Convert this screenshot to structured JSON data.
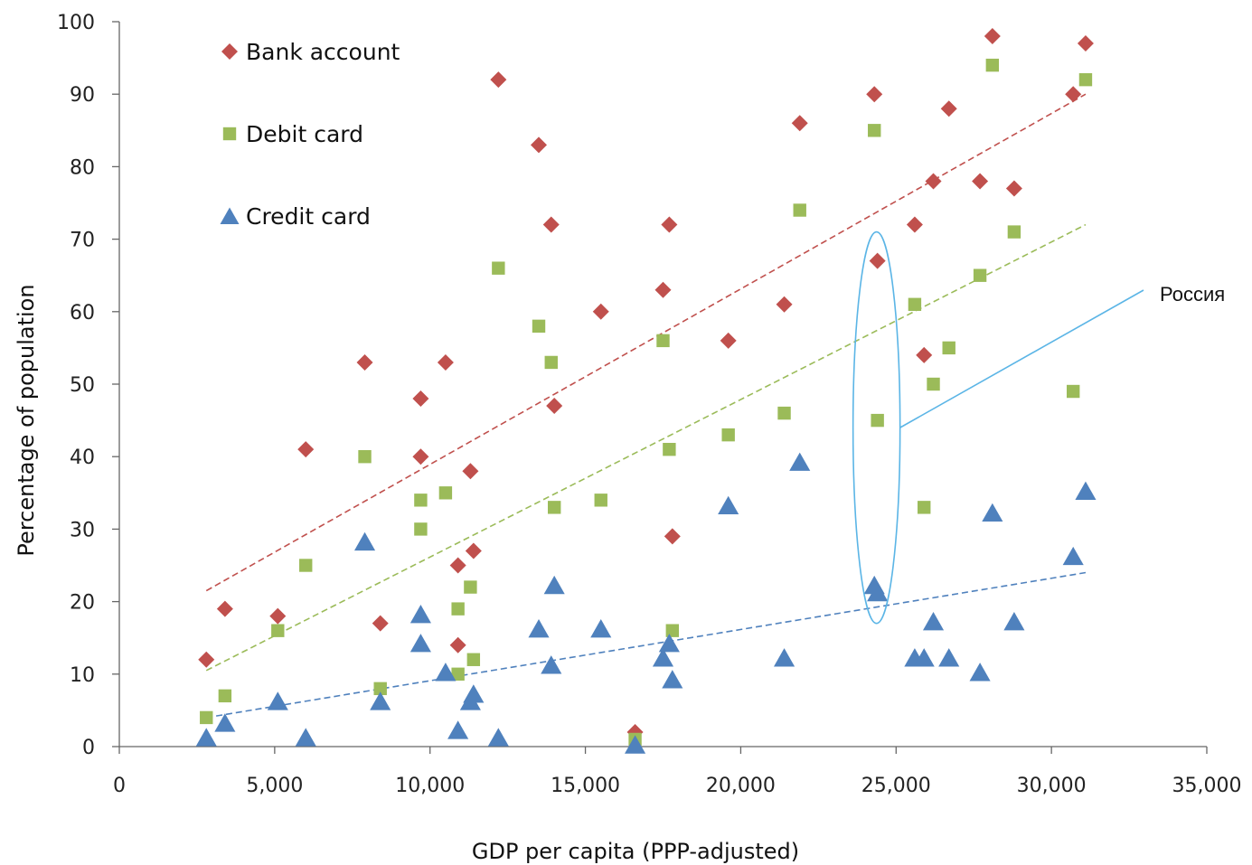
{
  "chart_data": {
    "type": "scatter",
    "title": "",
    "xlabel": "GDP per capita (PPP-adjusted)",
    "ylabel": "Percentage of population",
    "xlim": [
      0,
      35000
    ],
    "ylim": [
      0,
      100
    ],
    "xticks": [
      0,
      5000,
      10000,
      15000,
      20000,
      25000,
      30000,
      35000
    ],
    "xtick_labels": [
      "0",
      "5,000",
      "10,000",
      "15,000",
      "20,000",
      "25,000",
      "30,000",
      "35,000"
    ],
    "yticks": [
      0,
      10,
      20,
      30,
      40,
      50,
      60,
      70,
      80,
      90,
      100
    ],
    "ytick_labels": [
      "0",
      "10",
      "20",
      "30",
      "40",
      "50",
      "60",
      "70",
      "80",
      "90",
      "100"
    ],
    "grid": false,
    "legend_position": "top-left",
    "series": [
      {
        "name": "Bank account",
        "marker": "diamond",
        "color": "#c0504d",
        "x": [
          2800,
          3400,
          5100,
          6000,
          7900,
          8400,
          9700,
          9700,
          10500,
          10900,
          10900,
          11300,
          11400,
          12200,
          13500,
          13900,
          14000,
          15500,
          16600,
          17500,
          17700,
          17800,
          19600,
          21400,
          21900,
          24300,
          24400,
          25600,
          25900,
          26200,
          26700,
          27700,
          28100,
          28800,
          30700,
          31100
        ],
        "y": [
          12,
          19,
          18,
          41,
          53,
          17,
          48,
          40,
          53,
          25,
          14,
          38,
          27,
          92,
          83,
          72,
          47,
          60,
          2,
          63,
          72,
          29,
          56,
          61,
          86,
          90,
          67,
          72,
          54,
          78,
          88,
          78,
          98,
          77,
          90,
          97
        ]
      },
      {
        "name": "Debit card",
        "marker": "square",
        "color": "#9bbb59",
        "x": [
          2800,
          3400,
          5100,
          6000,
          7900,
          8400,
          9700,
          9700,
          10500,
          10900,
          10900,
          11300,
          11400,
          12200,
          13500,
          13900,
          14000,
          15500,
          16600,
          17500,
          17700,
          17800,
          19600,
          21400,
          21900,
          24300,
          24400,
          25600,
          25900,
          26200,
          26700,
          27700,
          28100,
          28800,
          30700,
          31100
        ],
        "y": [
          4,
          7,
          16,
          25,
          40,
          8,
          34,
          30,
          35,
          19,
          10,
          22,
          12,
          66,
          58,
          53,
          33,
          34,
          1,
          56,
          41,
          16,
          43,
          46,
          74,
          85,
          45,
          61,
          33,
          50,
          55,
          65,
          94,
          71,
          49,
          92
        ]
      },
      {
        "name": "Credit card",
        "marker": "triangle",
        "color": "#4f81bd",
        "x": [
          2800,
          3400,
          5100,
          6000,
          7900,
          8400,
          9700,
          9700,
          10500,
          10900,
          11300,
          11400,
          12200,
          13500,
          13900,
          14000,
          15500,
          16600,
          17500,
          17700,
          17800,
          19600,
          21400,
          21900,
          24300,
          24400,
          25600,
          25900,
          26200,
          26700,
          27700,
          28100,
          28800,
          30700,
          31100
        ],
        "y": [
          1,
          3,
          6,
          1,
          28,
          6,
          18,
          14,
          10,
          2,
          6,
          7,
          1,
          16,
          11,
          22,
          16,
          0,
          12,
          14,
          9,
          33,
          12,
          39,
          22,
          21,
          12,
          12,
          17,
          12,
          10,
          32,
          17,
          26,
          35
        ]
      }
    ],
    "trendlines": [
      {
        "color": "#c0504d",
        "x": [
          2800,
          31100
        ],
        "y": [
          21.5,
          90
        ]
      },
      {
        "color": "#9bbb59",
        "x": [
          2800,
          31100
        ],
        "y": [
          10.5,
          72
        ]
      },
      {
        "color": "#4f81bd",
        "x": [
          2800,
          31100
        ],
        "y": [
          4,
          24
        ]
      }
    ],
    "annotation": {
      "text": "Россия",
      "highlight_x": 24400,
      "highlight_y_range": [
        17,
        71
      ],
      "color": "#5bb5e6"
    }
  }
}
